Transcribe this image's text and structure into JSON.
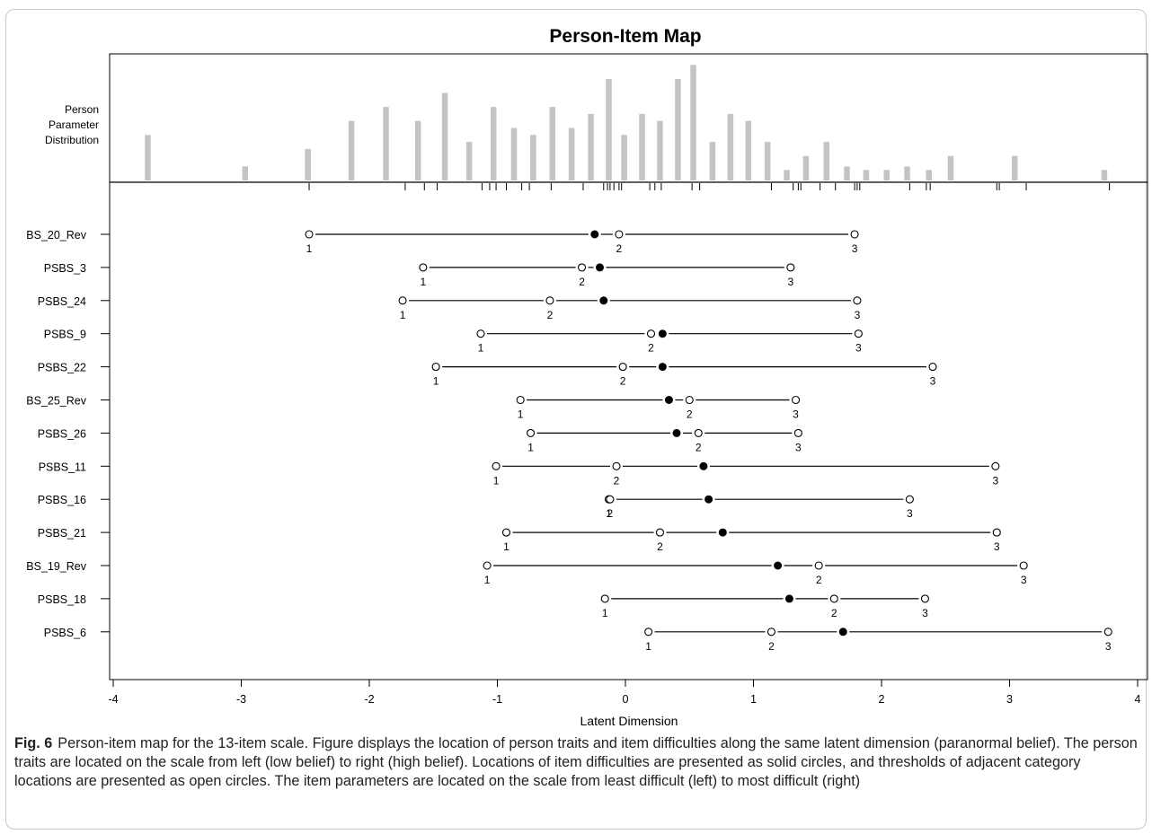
{
  "chart_data": {
    "type": "person-item map",
    "title": "Person-Item Map",
    "xlabel": "Latent Dimension",
    "xlim": [
      -4,
      4
    ],
    "xticks": [
      "-4",
      "-3",
      "-2",
      "-1",
      "0",
      "1",
      "2",
      "3",
      "4"
    ],
    "histogram_label": [
      "Person",
      "Parameter",
      "Distribution"
    ],
    "person_distribution": {
      "x": [
        -3.73,
        -2.97,
        -2.48,
        -2.14,
        -1.87,
        -1.62,
        -1.41,
        -1.22,
        -1.03,
        -0.87,
        -0.72,
        -0.57,
        -0.42,
        -0.27,
        -0.13,
        -0.01,
        0.13,
        0.27,
        0.41,
        0.53,
        0.68,
        0.82,
        0.96,
        1.11,
        1.26,
        1.41,
        1.57,
        1.73,
        1.88,
        2.04,
        2.2,
        2.37,
        2.54,
        3.04,
        3.74
      ],
      "height": [
        6.5,
        2,
        4.5,
        8.5,
        10.5,
        8.5,
        12.5,
        5.5,
        10.5,
        7.5,
        6.5,
        10.5,
        7.5,
        9.5,
        14.5,
        6.5,
        9.5,
        8.5,
        14.5,
        16.5,
        5.5,
        9.5,
        8.5,
        5.5,
        1.5,
        3.5,
        5.5,
        2,
        1.5,
        1.5,
        2,
        1.5,
        3.5,
        3.5,
        1.5
      ]
    },
    "rug_ticks": [
      -2.47,
      -1.72,
      -1.57,
      -1.47,
      -1.12,
      -1.06,
      -1.01,
      -0.93,
      -0.81,
      -0.75,
      -0.58,
      -0.33,
      -0.17,
      -0.14,
      -0.12,
      -0.09,
      -0.05,
      -0.03,
      0.19,
      0.23,
      0.28,
      0.52,
      0.58,
      1.14,
      1.31,
      1.35,
      1.37,
      1.52,
      1.64,
      1.79,
      1.81,
      1.83,
      2.22,
      2.35,
      2.38,
      2.9,
      2.92,
      3.13,
      3.78
    ],
    "items": [
      {
        "label": "BS_20_Rev",
        "location": -0.24,
        "thresholds": [
          -2.47,
          -0.05,
          1.79
        ],
        "threshold_labels": [
          "1",
          "2",
          "3"
        ]
      },
      {
        "label": "PSBS_3",
        "location": -0.2,
        "thresholds": [
          -1.58,
          -0.34,
          1.29
        ],
        "threshold_labels": [
          "1",
          "2",
          "3"
        ]
      },
      {
        "label": "PSBS_24",
        "location": -0.17,
        "thresholds": [
          -1.74,
          -0.59,
          1.81
        ],
        "threshold_labels": [
          "1",
          "2",
          "3"
        ]
      },
      {
        "label": "PSBS_9",
        "location": 0.29,
        "thresholds": [
          -1.13,
          0.2,
          1.82
        ],
        "threshold_labels": [
          "1",
          "2",
          "3"
        ]
      },
      {
        "label": "PSBS_22",
        "location": 0.29,
        "thresholds": [
          -1.48,
          -0.02,
          2.4
        ],
        "threshold_labels": [
          "1",
          "2",
          "3"
        ]
      },
      {
        "label": "BS_25_Rev",
        "location": 0.34,
        "thresholds": [
          -0.82,
          0.5,
          1.33
        ],
        "threshold_labels": [
          "1",
          "2",
          "3"
        ]
      },
      {
        "label": "PSBS_26",
        "location": 0.4,
        "thresholds": [
          -0.74,
          0.57,
          1.35
        ],
        "threshold_labels": [
          "1",
          "2",
          "3"
        ]
      },
      {
        "label": "PSBS_11",
        "location": 0.61,
        "thresholds": [
          -1.01,
          -0.07,
          2.89
        ],
        "threshold_labels": [
          "1",
          "2",
          "3"
        ]
      },
      {
        "label": "PSBS_16",
        "location": 0.65,
        "thresholds": [
          -0.13,
          -0.12,
          2.22
        ],
        "threshold_labels": [
          "1",
          "2",
          "3"
        ]
      },
      {
        "label": "PSBS_21",
        "location": 0.76,
        "thresholds": [
          -0.93,
          0.27,
          2.9
        ],
        "threshold_labels": [
          "1",
          "2",
          "3"
        ]
      },
      {
        "label": "BS_19_Rev",
        "location": 1.19,
        "thresholds": [
          -1.08,
          1.51,
          3.11
        ],
        "threshold_labels": [
          "1",
          "2",
          "3"
        ]
      },
      {
        "label": "PSBS_18",
        "location": 1.28,
        "thresholds": [
          -0.16,
          1.63,
          2.34
        ],
        "threshold_labels": [
          "1",
          "2",
          "3"
        ]
      },
      {
        "label": "PSBS_6",
        "location": 1.7,
        "thresholds": [
          0.18,
          1.14,
          3.77
        ],
        "threshold_labels": [
          "1",
          "2",
          "3"
        ]
      }
    ]
  },
  "caption": {
    "label": "Fig. 6",
    "text": "Person-item map for the 13-item scale. Figure displays the location of person traits and item difficulties along the same latent dimension (paranormal belief). The person traits are located on the scale from left (low belief) to right (high belief). Locations of item difficulties are presented as solid circles, and thresholds of adjacent category locations are presented as open circles. The item parameters are located on the scale from least difficult (left) to most difficult (right)"
  }
}
